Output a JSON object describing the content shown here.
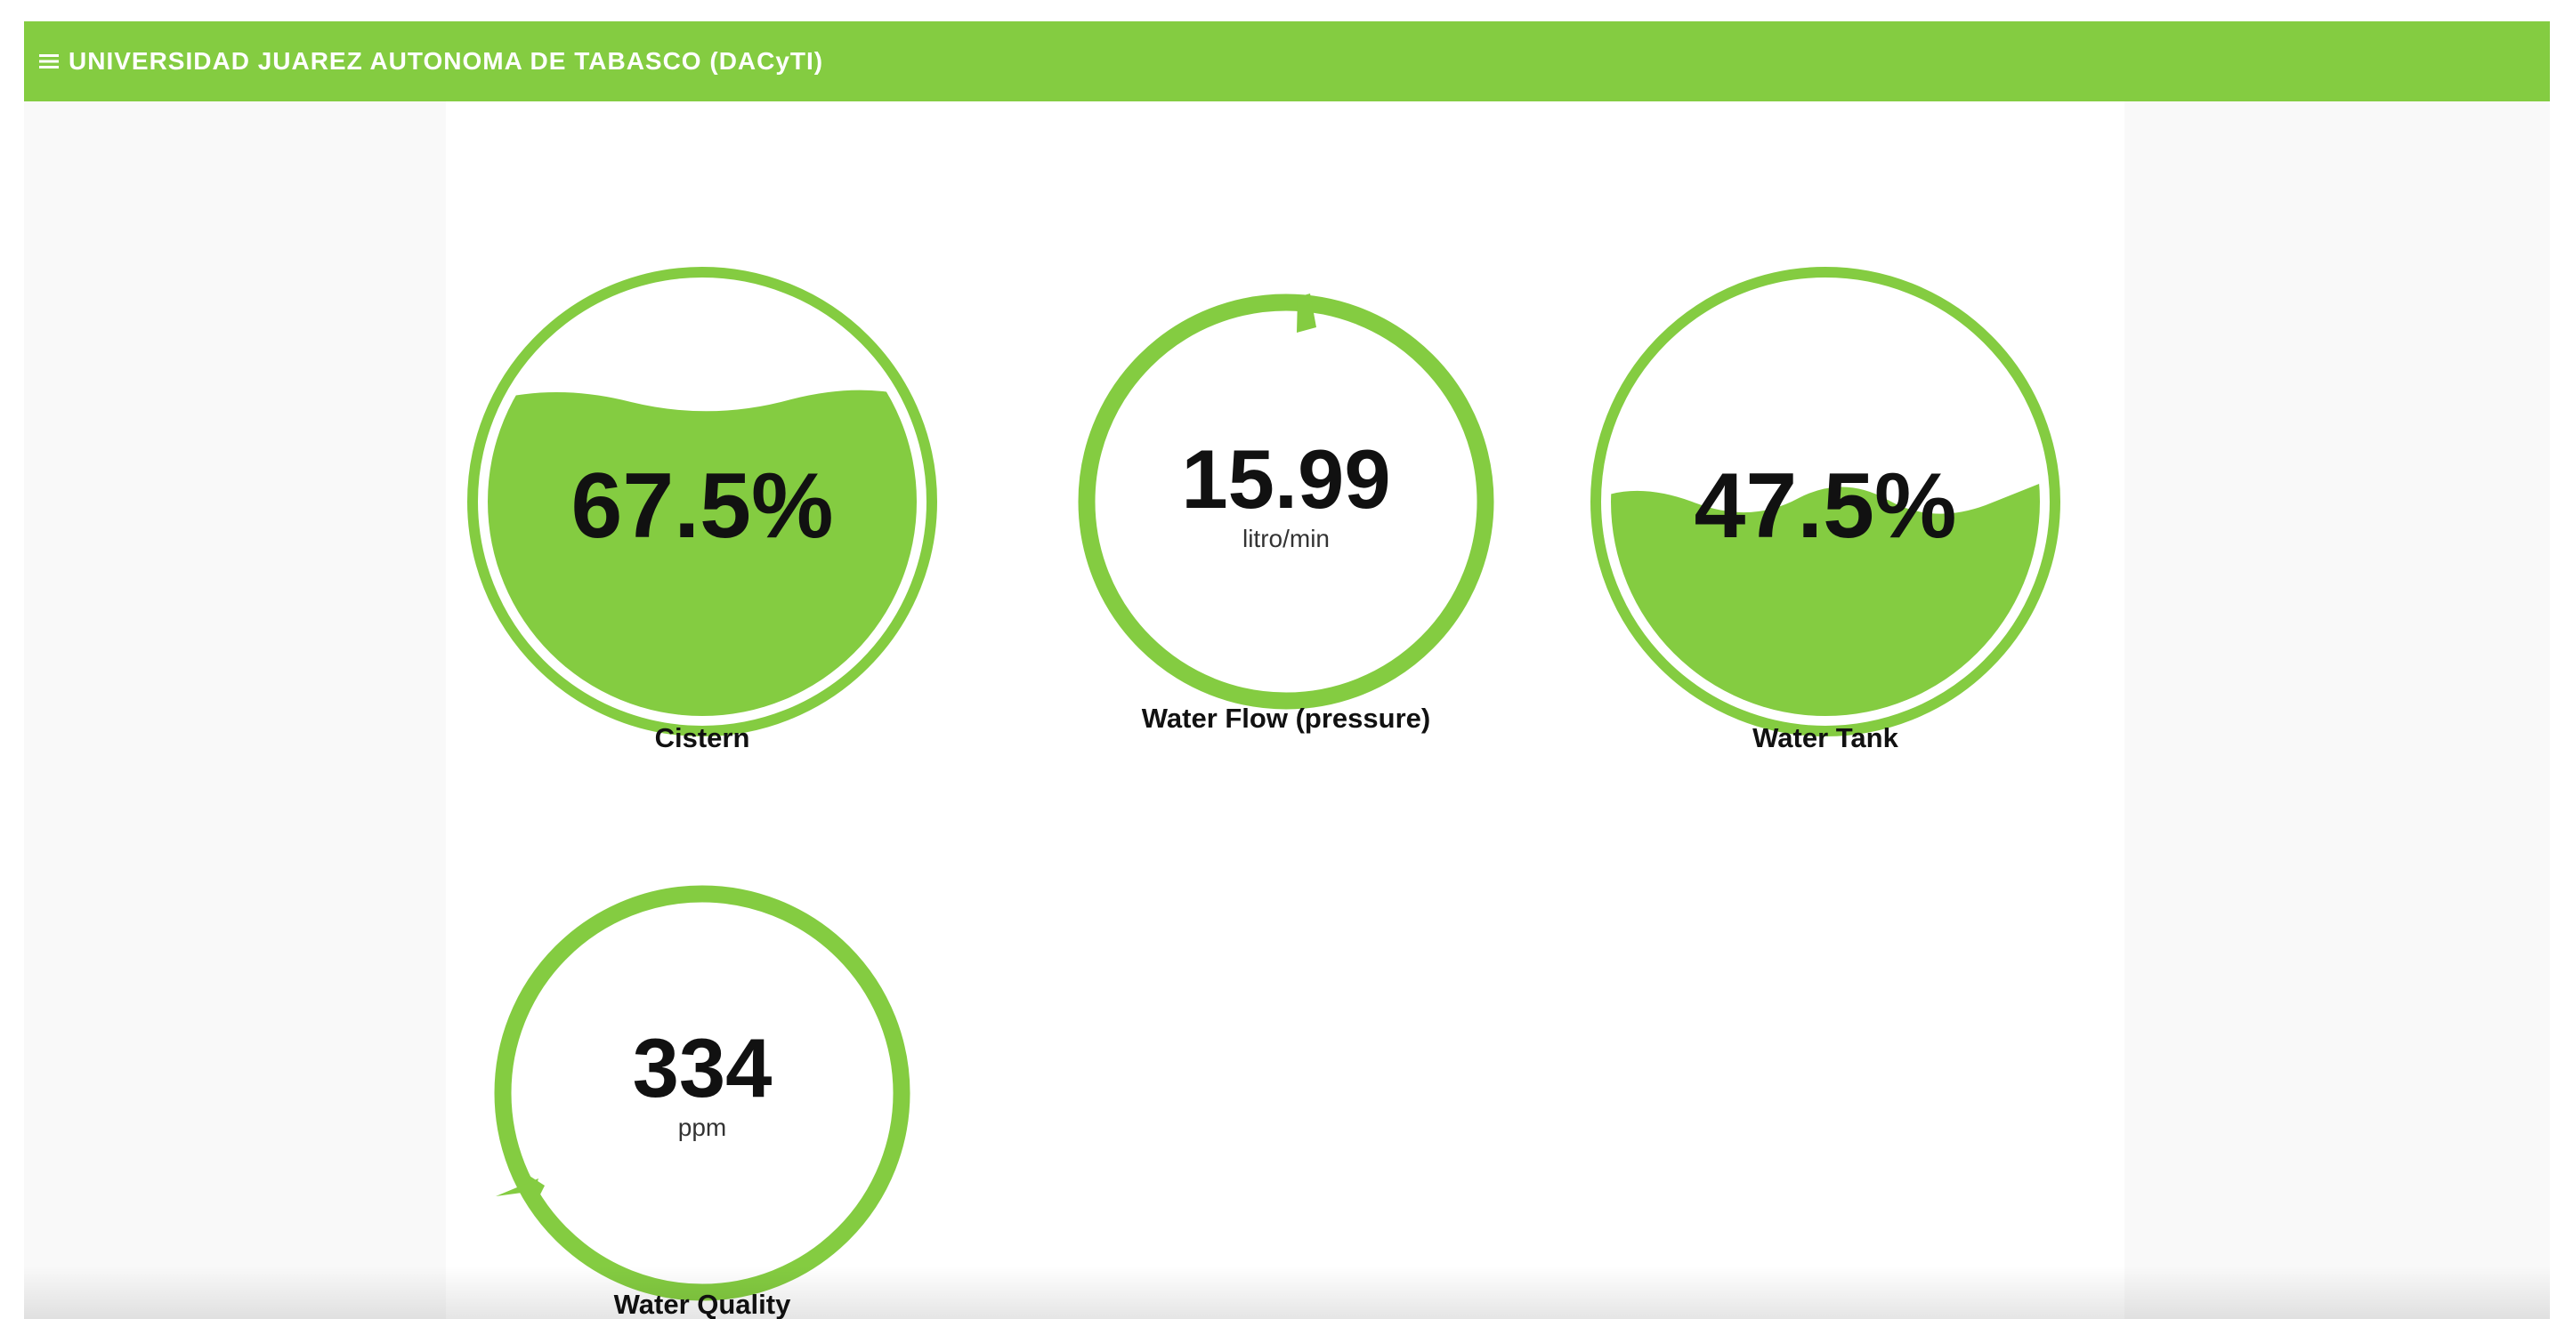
{
  "header": {
    "title": "UNIVERSIDAD JUAREZ AUTONOMA DE TABASCO (DACyTI)",
    "menu_icon": "hamburger-menu-icon",
    "background_color": "#84cc41"
  },
  "colors": {
    "accent": "#84cc41",
    "value_text": "#111111",
    "unit_text": "#333333"
  },
  "gauges": [
    {
      "kind": "liquid-fill",
      "value": "67.5%",
      "fill_fraction": 0.675,
      "label": "Cistern"
    },
    {
      "kind": "dial",
      "value": "15.99",
      "unit": "litro/min",
      "label": "Water Flow (pressure)"
    },
    {
      "kind": "liquid-fill",
      "value": "47.5%",
      "fill_fraction": 0.475,
      "label": "Water Tank"
    },
    {
      "kind": "dial",
      "value": "334",
      "unit": "ppm",
      "label": "Water Quality"
    }
  ]
}
